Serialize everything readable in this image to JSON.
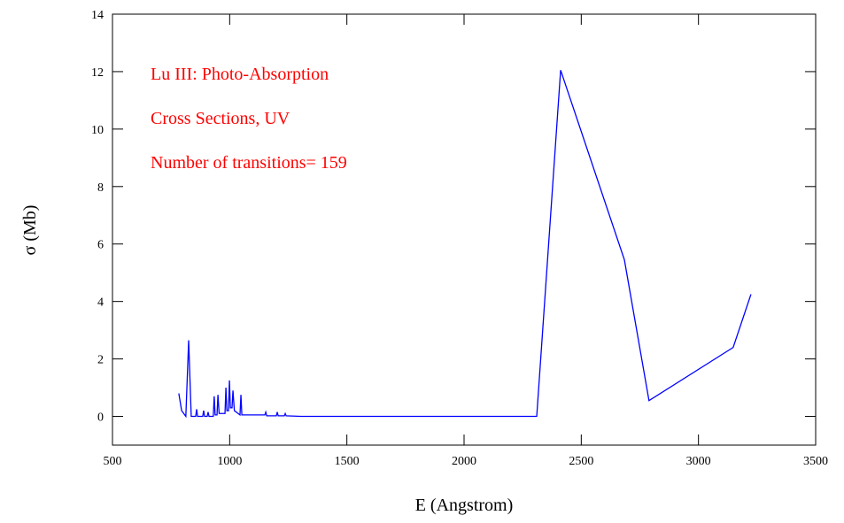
{
  "chart_data": {
    "type": "line",
    "annotations": [
      "Lu III: Photo-Absorption",
      "Cross Sections, UV",
      "Number of transitions= 159"
    ],
    "xlabel": "E (Angstrom)",
    "ylabel": "σ (Mb)",
    "x": [
      783,
      795,
      813,
      825,
      836,
      855,
      859,
      863,
      885,
      889,
      893,
      904,
      908,
      912,
      930,
      934,
      938,
      946,
      950,
      955,
      980,
      984,
      988,
      995,
      999,
      1003,
      1010,
      1014,
      1020,
      1044,
      1048,
      1052,
      1150,
      1154,
      1158,
      1199,
      1203,
      1207,
      1233,
      1237,
      1241,
      1305,
      2310,
      2412,
      2684,
      2789,
      3148,
      3224
    ],
    "series": [
      {
        "name": "Lu III",
        "color": "#0000ff",
        "values": [
          0.8,
          0.2,
          0,
          2.65,
          0,
          0,
          0.25,
          0,
          0,
          0.2,
          0,
          0,
          0.15,
          0,
          0,
          0.7,
          0.05,
          0.05,
          0.75,
          0.1,
          0.1,
          1.0,
          0.2,
          0.2,
          1.25,
          0.3,
          0.3,
          0.9,
          0.2,
          0.05,
          0.75,
          0.05,
          0.05,
          0.15,
          0.02,
          0.02,
          0.15,
          0.02,
          0.02,
          0.1,
          0.02,
          0,
          0,
          12.05,
          5.45,
          0.55,
          2.4,
          4.25
        ]
      }
    ],
    "xlim": [
      500,
      3500
    ],
    "xticks": [
      500,
      1000,
      1500,
      2000,
      2500,
      3000,
      3500
    ],
    "ylim": [
      -1,
      14
    ],
    "yticks": [
      0,
      2,
      4,
      6,
      8,
      10,
      12,
      14
    ],
    "annotation_color": "#ff0000"
  }
}
